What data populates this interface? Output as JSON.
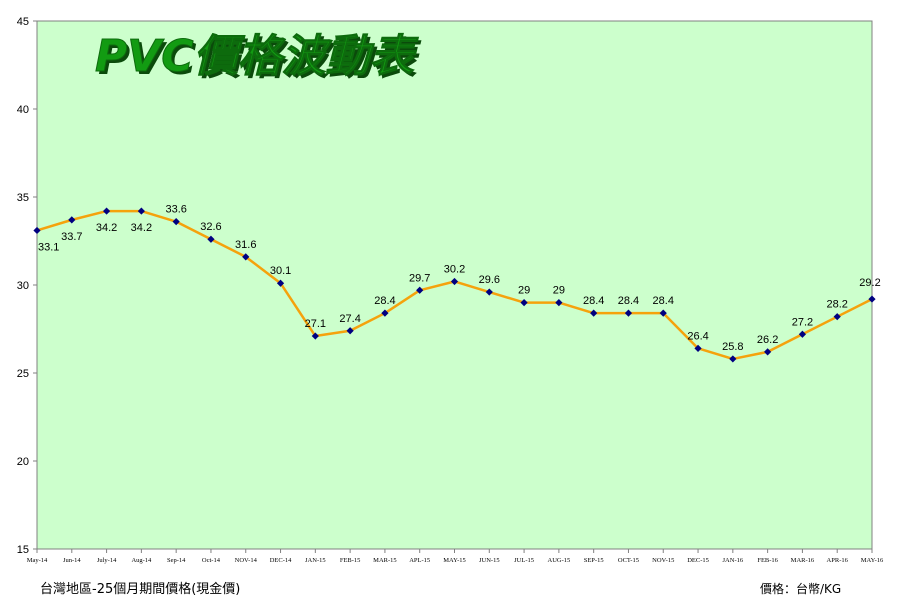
{
  "chart_data": {
    "type": "line",
    "title": "PVC價格波動表",
    "categories": [
      "May-14",
      "Jun-14",
      "July-14",
      "Aug-14",
      "Sep-14",
      "Oct-14",
      "NOV-14",
      "DEC-14",
      "JAN-15",
      "FEB-15",
      "MAR-15",
      "APL-15",
      "MAY-15",
      "JUN-15",
      "JUL-15",
      "AUG-15",
      "SEP-15",
      "OCT-15",
      "NOV-15",
      "DEC-15",
      "JAN-16",
      "FEB-16",
      "MAR-16",
      "APR-16",
      "MAY-16"
    ],
    "values": [
      33.1,
      33.7,
      34.2,
      34.2,
      33.6,
      32.6,
      31.6,
      30.1,
      27.1,
      27.4,
      28.4,
      29.7,
      30.2,
      29.6,
      29,
      29,
      28.4,
      28.4,
      28.4,
      26.4,
      25.8,
      26.2,
      27.2,
      28.2,
      29.2
    ],
    "data_labels": [
      "33.1",
      "33.7",
      "34.2",
      "34.2",
      "33.6",
      "32.6",
      "31.6",
      "30.1",
      "27.1",
      "27.4",
      "28.4",
      "29.7",
      "30.2",
      "29.6",
      "29",
      "29",
      "28.4",
      "28.4",
      "28.4",
      "26.4",
      "25.8",
      "26.2",
      "27.2",
      "28.2",
      "29.2"
    ],
    "ylim": [
      15,
      45
    ],
    "yticks": [
      "15",
      "20",
      "25",
      "30",
      "35",
      "40",
      "45"
    ],
    "grid": false,
    "legend": "none",
    "colors": {
      "plot_bg": "#ccffcc",
      "line": "#f5a20c",
      "marker": "#000080",
      "title_fill": "#129b12",
      "title_shadow": "#0b4a0b"
    }
  },
  "footer": {
    "left": "台灣地區-25個月期間價格(現金價)",
    "right": "價格：台幣/KG"
  }
}
